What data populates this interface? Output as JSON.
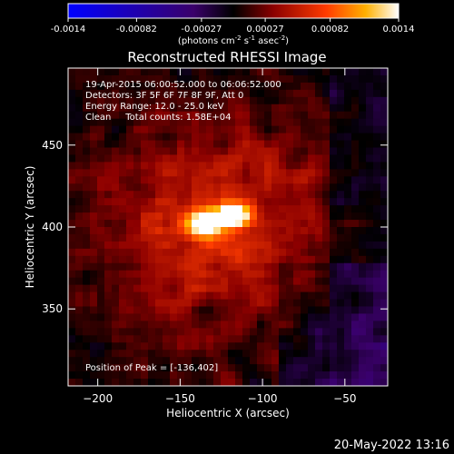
{
  "chart_data": {
    "type": "heatmap",
    "title": "Reconstructed RHESSI Image",
    "xlabel": "Heliocentric X (arcsec)",
    "ylabel": "Heliocentric Y (arcsec)",
    "xlim": [
      -218,
      -24
    ],
    "ylim": [
      303,
      497
    ],
    "xticks": [
      -200,
      -150,
      -100,
      -50
    ],
    "yticks": [
      350,
      400,
      450
    ],
    "colorbar": {
      "range": [
        -0.0014,
        0.0014
      ],
      "tick_values": [
        -0.0014,
        -0.00082,
        -0.00027,
        0.00027,
        0.00082,
        0.0014
      ],
      "tick_labels": [
        "-0.0014",
        "-0.00082",
        "-0.00027",
        "0.00027",
        "0.00082",
        "0.0014"
      ],
      "unit_main": "(photons cm",
      "unit_tail": " s",
      "unit_tail2": " asec",
      "unit_end": ")",
      "sup1": "-2",
      "sup2": "-1",
      "sup3": "-2"
    },
    "annotations": [
      "19-Apr-2015 06:00:52.000 to 06:06:52.000",
      "Detectors: 3F 5F 6F 7F 8F 9F, Att 0",
      "Energy Range: 12.0 - 25.0 keV",
      "Clean     Total counts: 1.58E+04"
    ],
    "peak_label": "Position of Peak = [-136,402]",
    "sources": [
      {
        "x": -135,
        "y": 402,
        "peak": 0.0014
      },
      {
        "x": -117,
        "y": 407,
        "peak": 0.00125
      }
    ]
  },
  "footer": {
    "timestamp": "20-May-2022 13:16"
  }
}
